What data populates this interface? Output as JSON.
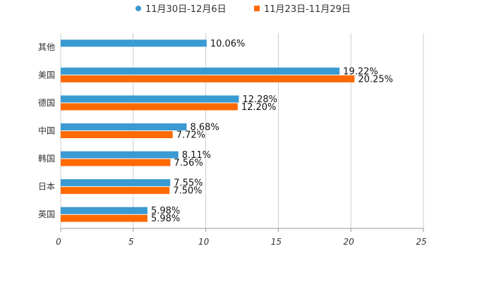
{
  "chart_data": {
    "type": "bar",
    "orientation": "horizontal",
    "categories": [
      "其他",
      "美国",
      "德国",
      "中国",
      "韩国",
      "日本",
      "英国"
    ],
    "series": [
      {
        "name": "11月30日-12月6日",
        "color": "#3a9ad2",
        "values": [
          10.06,
          19.22,
          12.28,
          8.68,
          8.11,
          7.55,
          5.98
        ],
        "labels": [
          "10.06%",
          "19.22%",
          "12.28%",
          "8.68%",
          "8.11%",
          "7.55%",
          "5.98%"
        ]
      },
      {
        "name": "11月23日-11月29日",
        "color": "#ff6a00",
        "values": [
          null,
          20.25,
          12.2,
          7.72,
          7.56,
          7.5,
          5.98
        ],
        "labels": [
          null,
          "20.25%",
          "12.20%",
          "7.72%",
          "7.56%",
          "7.50%",
          "5.98%"
        ]
      }
    ],
    "xlim": [
      0,
      25
    ],
    "xticks": [
      0,
      5,
      10,
      15,
      20,
      25
    ],
    "title": "",
    "xlabel": "",
    "ylabel": "",
    "grid": true,
    "legend_position": "top"
  }
}
